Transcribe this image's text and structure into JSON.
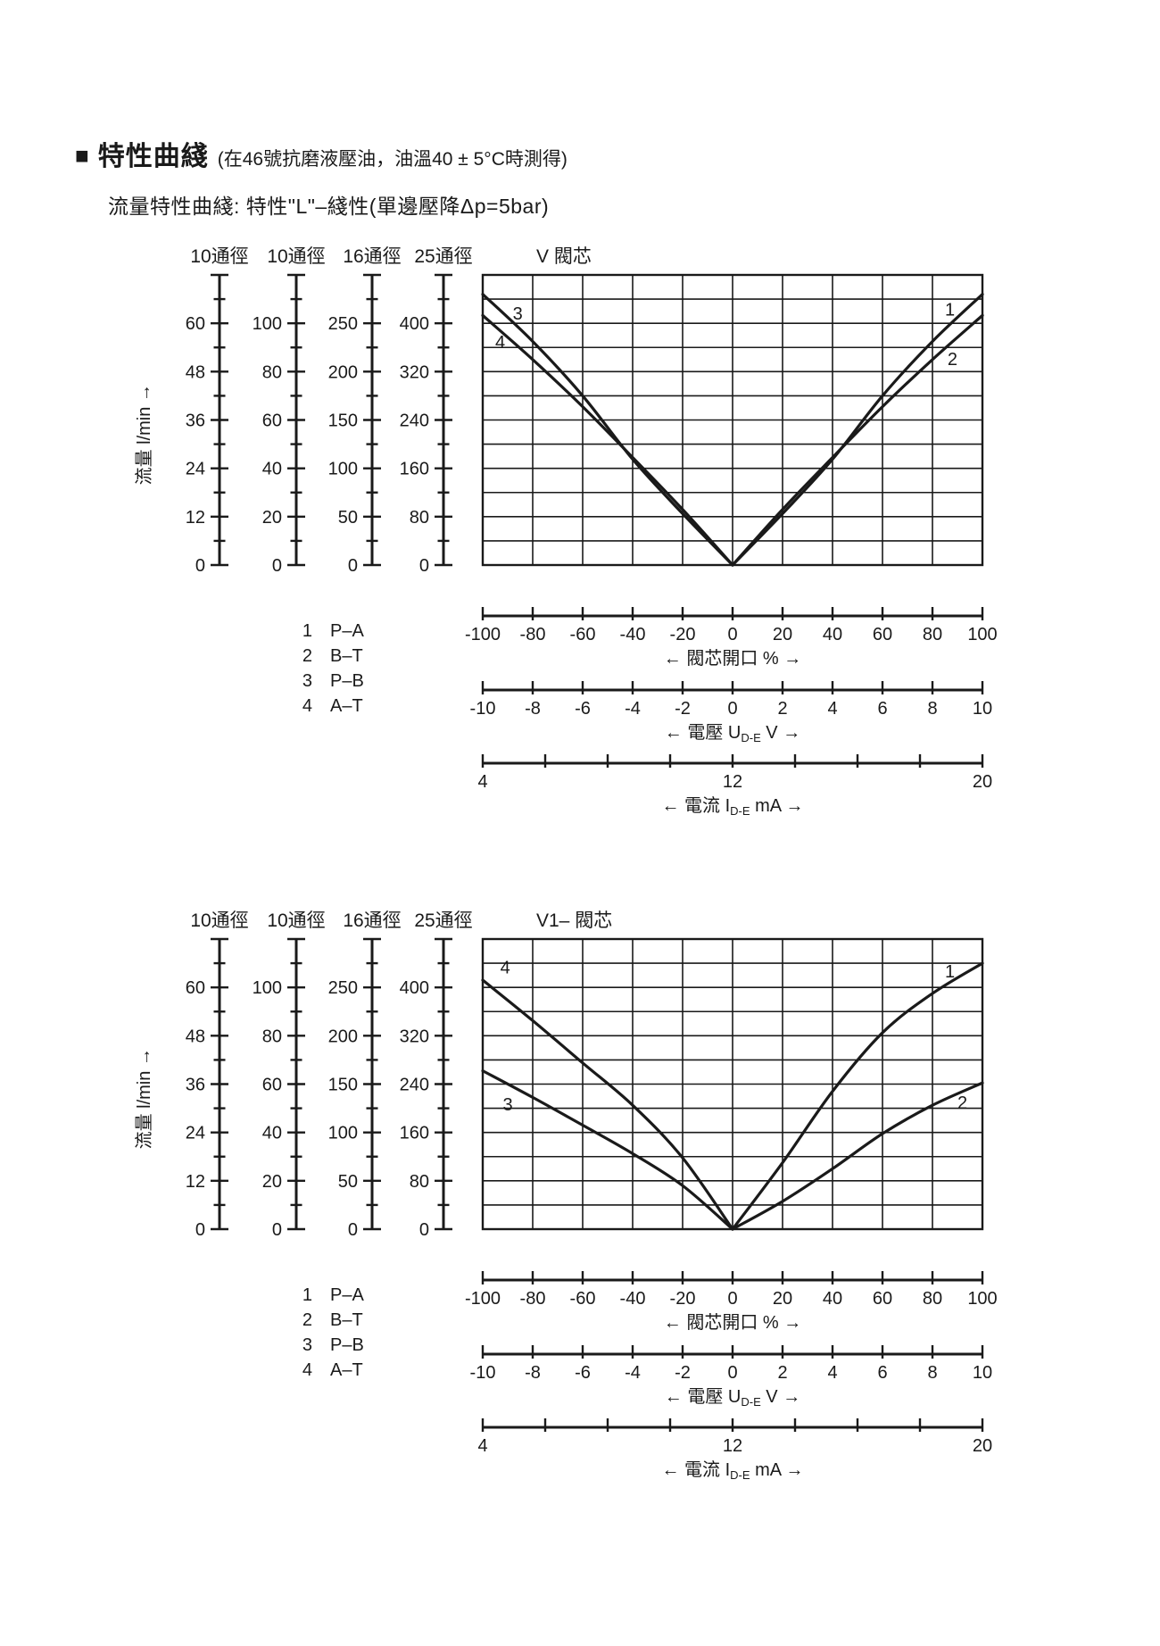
{
  "page": {
    "title_marker": "■",
    "title": "特性曲綫",
    "title_note": "(在46號抗磨液壓油，油溫40 ± 5°C時測得)",
    "subtitle": "流量特性曲綫: 特性\"L\"–綫性(單邊壓降Δp=5bar)"
  },
  "chart_data": [
    {
      "type": "line",
      "title": "V 閥芯",
      "flow_axis_label": "流量 l/min →",
      "grid": true,
      "y_plot_range_ref25": [
        0,
        480
      ],
      "scales": [
        {
          "name": "10通徑",
          "tick_labels": [
            "0",
            "12",
            "24",
            "36",
            "48",
            "60"
          ],
          "plot_max": 72
        },
        {
          "name": "10通徑",
          "tick_labels": [
            "0",
            "20",
            "40",
            "60",
            "80",
            "100"
          ],
          "plot_max": 120
        },
        {
          "name": "16通徑",
          "tick_labels": [
            "0",
            "50",
            "100",
            "150",
            "200",
            "250"
          ],
          "plot_max": 300
        },
        {
          "name": "25通徑",
          "tick_labels": [
            "0",
            "80",
            "160",
            "240",
            "320",
            "400"
          ],
          "plot_max": 480
        }
      ],
      "x_axes": [
        {
          "name": "spool-opening",
          "range": [
            -100,
            100
          ],
          "ticks": [
            -100,
            -80,
            -60,
            -40,
            -20,
            0,
            20,
            40,
            60,
            80,
            100
          ],
          "tick_labels": [
            "-100",
            "-80",
            "-60",
            "-40",
            "-20",
            "0",
            "20",
            "40",
            "60",
            "80",
            "100"
          ],
          "caption": [
            {
              "t": "← 閥芯開口 % →"
            }
          ]
        },
        {
          "name": "voltage",
          "range": [
            -10,
            10
          ],
          "ticks": [
            -10,
            -8,
            -6,
            -4,
            -2,
            0,
            2,
            4,
            6,
            8,
            10
          ],
          "tick_labels": [
            "-10",
            "-8",
            "-6",
            "-4",
            "-2",
            "0",
            "2",
            "4",
            "6",
            "8",
            "10"
          ],
          "caption": [
            {
              "t": "← 電壓 U"
            },
            {
              "t": "D-E",
              "sub": true
            },
            {
              "t": " V →"
            }
          ]
        },
        {
          "name": "current",
          "range": [
            4,
            20
          ],
          "ticks": [
            4,
            6,
            8,
            10,
            12,
            14,
            16,
            18,
            20
          ],
          "tick_labels": [
            "4",
            "",
            "",
            "",
            "12",
            "",
            "",
            "",
            "20"
          ],
          "caption": [
            {
              "t": "← 電流 I"
            },
            {
              "t": "D-E",
              "sub": true
            },
            {
              "t": " mA →"
            }
          ]
        }
      ],
      "legend": [
        {
          "num": "1",
          "label": "P–A"
        },
        {
          "num": "2",
          "label": "B–T"
        },
        {
          "num": "3",
          "label": "P–B"
        },
        {
          "num": "4",
          "label": "A–T"
        }
      ],
      "series": [
        {
          "id": "1",
          "ports": "P–A",
          "label_anchor": {
            "x": 87,
            "y": 422
          },
          "points": [
            [
              0,
              0
            ],
            [
              20,
              85
            ],
            [
              40,
              175
            ],
            [
              60,
              280
            ],
            [
              80,
              370
            ],
            [
              100,
              448
            ]
          ]
        },
        {
          "id": "2",
          "ports": "B–T",
          "label_anchor": {
            "x": 88,
            "y": 340
          },
          "points": [
            [
              0,
              0
            ],
            [
              20,
              92
            ],
            [
              40,
              178
            ],
            [
              60,
              262
            ],
            [
              80,
              340
            ],
            [
              100,
              413
            ]
          ]
        },
        {
          "id": "3",
          "ports": "P–B",
          "label_anchor": {
            "x": -86,
            "y": 415
          },
          "points": [
            [
              -100,
              448
            ],
            [
              -80,
              370
            ],
            [
              -60,
              280
            ],
            [
              -40,
              175
            ],
            [
              -20,
              85
            ],
            [
              0,
              0
            ]
          ]
        },
        {
          "id": "4",
          "ports": "A–T",
          "label_anchor": {
            "x": -93,
            "y": 368
          },
          "points": [
            [
              -100,
              413
            ],
            [
              -80,
              340
            ],
            [
              -60,
              262
            ],
            [
              -40,
              178
            ],
            [
              -20,
              92
            ],
            [
              0,
              0
            ]
          ]
        }
      ]
    },
    {
      "type": "line",
      "title": "V1–  閥芯",
      "flow_axis_label": "流量 l/min →",
      "grid": true,
      "y_plot_range_ref25": [
        0,
        480
      ],
      "scales": [
        {
          "name": "10通徑",
          "tick_labels": [
            "0",
            "12",
            "24",
            "36",
            "48",
            "60"
          ],
          "plot_max": 72
        },
        {
          "name": "10通徑",
          "tick_labels": [
            "0",
            "20",
            "40",
            "60",
            "80",
            "100"
          ],
          "plot_max": 120
        },
        {
          "name": "16通徑",
          "tick_labels": [
            "0",
            "50",
            "100",
            "150",
            "200",
            "250"
          ],
          "plot_max": 300
        },
        {
          "name": "25通徑",
          "tick_labels": [
            "0",
            "80",
            "160",
            "240",
            "320",
            "400"
          ],
          "plot_max": 480
        }
      ],
      "x_axes": [
        {
          "name": "spool-opening",
          "range": [
            -100,
            100
          ],
          "ticks": [
            -100,
            -80,
            -60,
            -40,
            -20,
            0,
            20,
            40,
            60,
            80,
            100
          ],
          "tick_labels": [
            "-100",
            "-80",
            "-60",
            "-40",
            "-20",
            "0",
            "20",
            "40",
            "60",
            "80",
            "100"
          ],
          "caption": [
            {
              "t": "← 閥芯開口 % →"
            }
          ]
        },
        {
          "name": "voltage",
          "range": [
            -10,
            10
          ],
          "ticks": [
            -10,
            -8,
            -6,
            -4,
            -2,
            0,
            2,
            4,
            6,
            8,
            10
          ],
          "tick_labels": [
            "-10",
            "-8",
            "-6",
            "-4",
            "-2",
            "0",
            "2",
            "4",
            "6",
            "8",
            "10"
          ],
          "caption": [
            {
              "t": "← 電壓 U"
            },
            {
              "t": "D-E",
              "sub": true
            },
            {
              "t": " V →"
            }
          ]
        },
        {
          "name": "current",
          "range": [
            4,
            20
          ],
          "ticks": [
            4,
            6,
            8,
            10,
            12,
            14,
            16,
            18,
            20
          ],
          "tick_labels": [
            "4",
            "",
            "",
            "",
            "12",
            "",
            "",
            "",
            "20"
          ],
          "caption": [
            {
              "t": "← 電流 I"
            },
            {
              "t": "D-E",
              "sub": true
            },
            {
              "t": " mA →"
            }
          ]
        }
      ],
      "legend": [
        {
          "num": "1",
          "label": "P–A"
        },
        {
          "num": "2",
          "label": "B–T"
        },
        {
          "num": "3",
          "label": "P–B"
        },
        {
          "num": "4",
          "label": "A–T"
        }
      ],
      "series": [
        {
          "id": "1",
          "ports": "P–A",
          "label_anchor": {
            "x": 87,
            "y": 425
          },
          "points": [
            [
              0,
              0
            ],
            [
              20,
              110
            ],
            [
              40,
              228
            ],
            [
              60,
              325
            ],
            [
              80,
              390
            ],
            [
              100,
              440
            ]
          ]
        },
        {
          "id": "2",
          "ports": "B–T",
          "label_anchor": {
            "x": 92,
            "y": 208
          },
          "points": [
            [
              0,
              0
            ],
            [
              20,
              46
            ],
            [
              40,
              100
            ],
            [
              60,
              158
            ],
            [
              80,
              205
            ],
            [
              100,
              242
            ]
          ]
        },
        {
          "id": "3",
          "ports": "P–B",
          "label_anchor": {
            "x": -90,
            "y": 205
          },
          "points": [
            [
              -100,
              262
            ],
            [
              -80,
              218
            ],
            [
              -60,
              172
            ],
            [
              -40,
              125
            ],
            [
              -20,
              72
            ],
            [
              0,
              0
            ]
          ]
        },
        {
          "id": "4",
          "ports": "A–T",
          "label_anchor": {
            "x": -91,
            "y": 432
          },
          "points": [
            [
              -100,
              412
            ],
            [
              -80,
              345
            ],
            [
              -60,
              275
            ],
            [
              -40,
              205
            ],
            [
              -20,
              118
            ],
            [
              0,
              0
            ]
          ]
        }
      ]
    }
  ]
}
